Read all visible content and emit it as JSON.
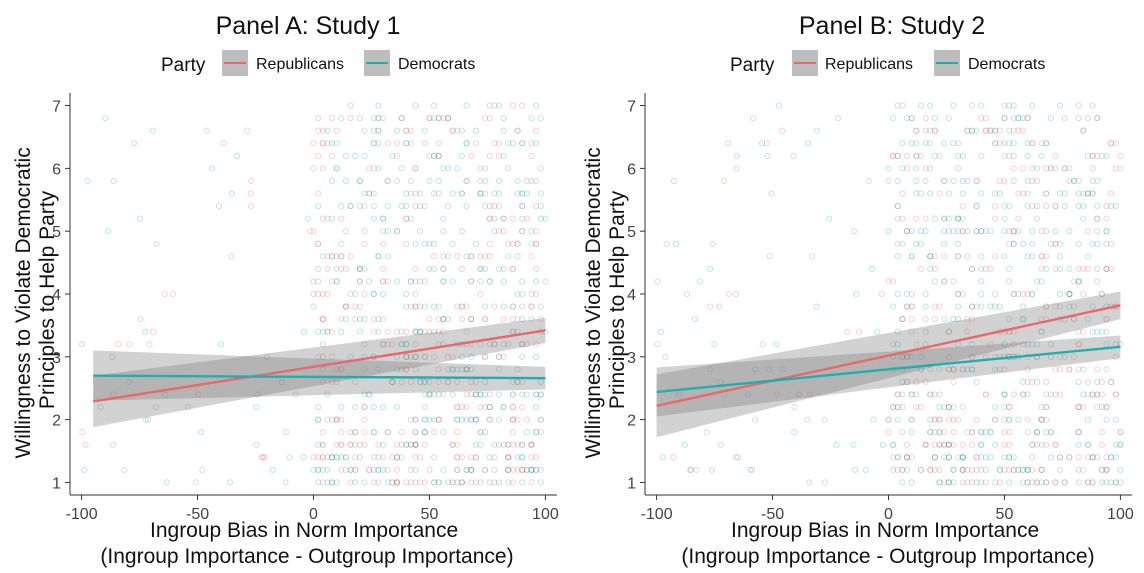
{
  "figure": {
    "shared_ylabel": [
      "Willingness to Violate Democratic",
      "Principles to Help Party"
    ],
    "shared_xlabel": [
      "Ingroup Bias in Norm Importance",
      "(Ingroup Importance - Outgroup Importance)"
    ],
    "legend_title": "Party",
    "colors": {
      "Republicans": "#e8696a",
      "Democrats": "#22aeb0",
      "band": "#7f7f7f"
    }
  },
  "chart_data": [
    {
      "type": "scatter",
      "title": "Panel A: Study 1",
      "xlabel": "Ingroup Bias in Norm Importance (Ingroup Importance - Outgroup Importance)",
      "ylabel": "Willingness to Violate Democratic Principles to Help Party",
      "xlim": [
        -105,
        105
      ],
      "ylim": [
        0.8,
        7.2
      ],
      "xticks": [
        -100,
        -50,
        0,
        50,
        100
      ],
      "yticks": [
        1,
        2,
        3,
        4,
        5,
        6,
        7
      ],
      "grid": false,
      "legend": {
        "title": "Party",
        "position": "top",
        "entries": [
          "Republicans",
          "Democrats"
        ]
      },
      "series": [
        {
          "name": "Republicans",
          "color": "#e8696a",
          "fit": {
            "x": [
              -95,
              100
            ],
            "y": [
              2.29,
              3.42
            ],
            "ci_low": [
              1.88,
              3.22
            ],
            "ci_high": [
              2.7,
              3.62
            ]
          }
        },
        {
          "name": "Democrats",
          "color": "#22aeb0",
          "fit": {
            "x": [
              -95,
              100
            ],
            "y": [
              2.7,
              2.66
            ],
            "ci_low": [
              2.3,
              2.48
            ],
            "ci_high": [
              3.1,
              2.84
            ]
          }
        }
      ],
      "points_note": "jittered individual responses (overplotted)"
    },
    {
      "type": "scatter",
      "title": "Panel B: Study 2",
      "xlabel": "Ingroup Bias in Norm Importance (Ingroup Importance - Outgroup Importance)",
      "ylabel": "Willingness to Violate Democratic Principles to Help Party",
      "xlim": [
        -105,
        105
      ],
      "ylim": [
        0.8,
        7.2
      ],
      "xticks": [
        -100,
        -50,
        0,
        50,
        100
      ],
      "yticks": [
        1,
        2,
        3,
        4,
        5,
        6,
        7
      ],
      "grid": false,
      "legend": {
        "title": "Party",
        "position": "top",
        "entries": [
          "Republicans",
          "Democrats"
        ]
      },
      "series": [
        {
          "name": "Republicans",
          "color": "#e8696a",
          "fit": {
            "x": [
              -100,
              100
            ],
            "y": [
              2.22,
              3.82
            ],
            "ci_low": [
              1.72,
              3.6
            ],
            "ci_high": [
              2.72,
              4.04
            ]
          }
        },
        {
          "name": "Democrats",
          "color": "#22aeb0",
          "fit": {
            "x": [
              -100,
              100
            ],
            "y": [
              2.44,
              3.16
            ],
            "ci_low": [
              2.05,
              2.98
            ],
            "ci_high": [
              2.83,
              3.34
            ]
          }
        }
      ],
      "points_note": "jittered individual responses (overplotted)"
    }
  ]
}
